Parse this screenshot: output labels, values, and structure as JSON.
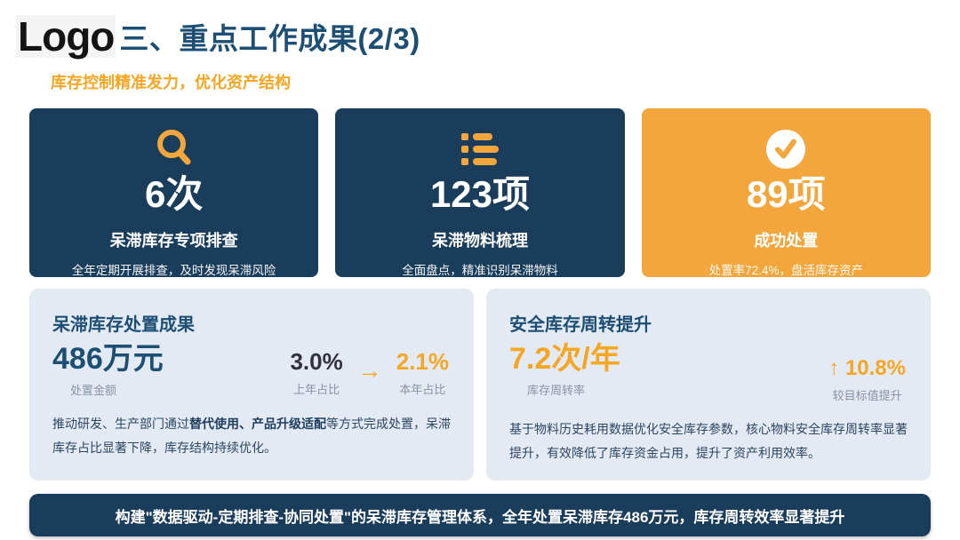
{
  "colors": {
    "navy": "#1b3d5c",
    "title_blue": "#1d4e73",
    "orange": "#f5a623",
    "card_orange": "#f2a63b",
    "panel_bg": "#e4eaf3",
    "gray": "#8a93a3",
    "dark": "#32323c",
    "body_text": "#2c4663"
  },
  "header": {
    "logo": "Logo",
    "title": "三、重点工作成果(2/3)",
    "subtitle": "库存控制精准发力，优化资产结构"
  },
  "stat_cards": [
    {
      "icon": "search-icon",
      "value": "6次",
      "title": "呆滞库存专项排查",
      "desc": "全年定期开展排查，及时发现呆滞风险",
      "theme": "navy"
    },
    {
      "icon": "list-icon",
      "value": "123项",
      "title": "呆滞物料梳理",
      "desc": "全面盘点，精准识别呆滞物料",
      "theme": "navy"
    },
    {
      "icon": "check-icon",
      "value": "89项",
      "title": "成功处置",
      "desc": "处置率72.4%，盘活库存资产",
      "theme": "orange"
    }
  ],
  "panels": [
    {
      "title": "呆滞库存处置成果",
      "value": "486万元",
      "value_label": "处置金额",
      "comparison": {
        "from": "3.0%",
        "from_label": "上年占比",
        "arrow": "→",
        "to": "2.1%",
        "to_label": "本年占比"
      },
      "desc_parts": [
        {
          "text": "推动研发、生产部门通过",
          "bold": false
        },
        {
          "text": "替代使用、产品升级适配",
          "bold": true
        },
        {
          "text": "等方式完成处置，呆滞库存占比显著下降，库存结构持续优化。",
          "bold": false
        }
      ]
    },
    {
      "title": "安全库存周转提升",
      "value": "7.2次/年",
      "value_label": "库存周转率",
      "delta": {
        "arrow": "↑",
        "value": "10.8%",
        "label": "较目标值提升"
      },
      "desc_parts": [
        {
          "text": "基于物料历史耗用数据优化安全库存参数，核心物料安全库存周转率显著提升，有效降低了库存资金占用，提升了资产利用效率。",
          "bold": false
        }
      ]
    }
  ],
  "footer": {
    "text": "构建\"数据驱动-定期排查-协同处置\"的呆滞库存管理体系，全年处置呆滞库存486万元，库存周转效率显著提升"
  }
}
